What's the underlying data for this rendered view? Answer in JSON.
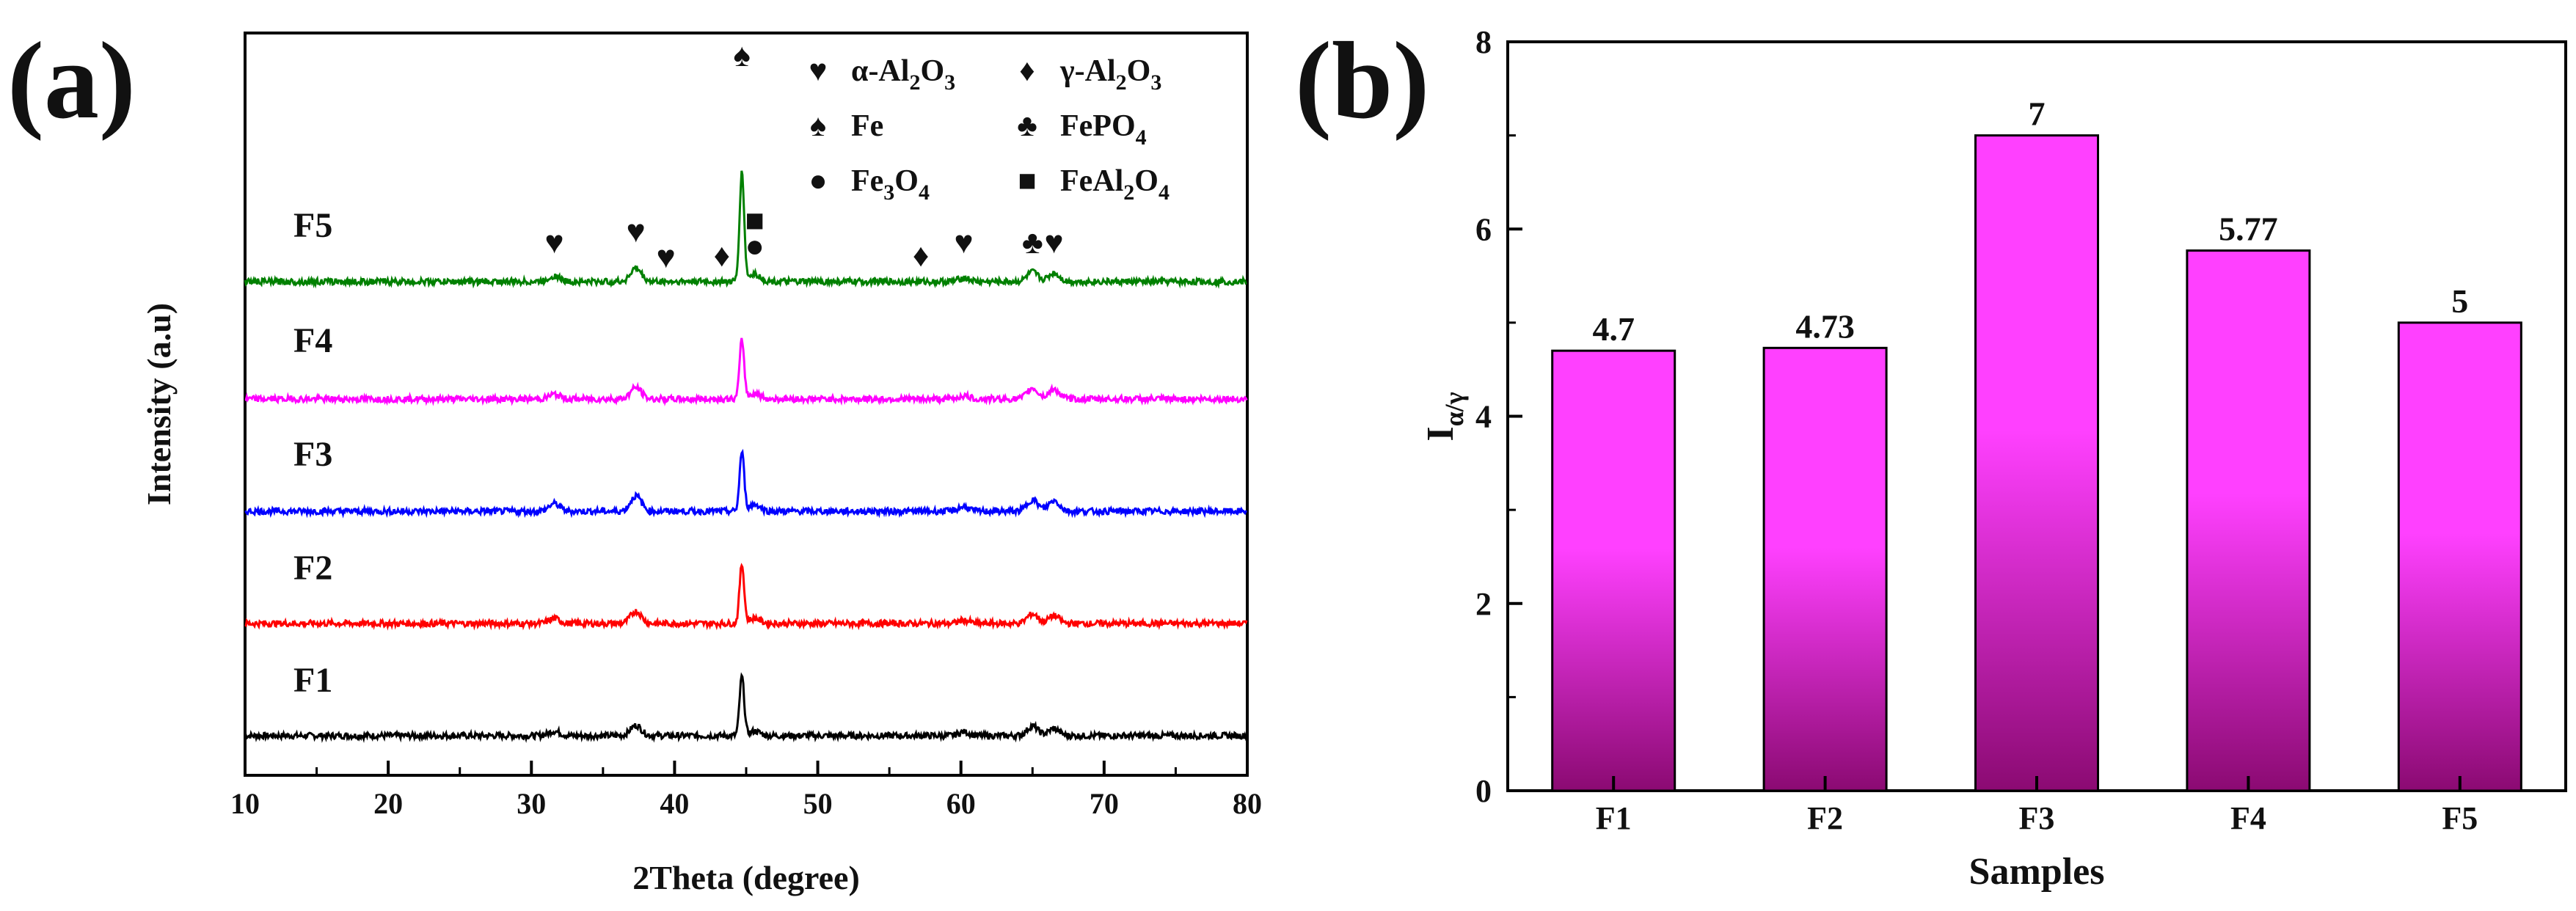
{
  "chart_data": [
    {
      "panel_label": "(a)",
      "type": "line",
      "xlabel": "2Theta (degree)",
      "ylabel": "Intensity (a.u)",
      "xlim": [
        10,
        80
      ],
      "xticks": [
        "10",
        "20",
        "30",
        "40",
        "50",
        "60",
        "70",
        "80"
      ],
      "series": [
        {
          "name": "F1",
          "color": "#000000",
          "peaks": [
            [
              31.6,
              0.12
            ],
            [
              37.3,
              0.27
            ],
            [
              44.7,
              1.55
            ],
            [
              45.6,
              0.12
            ],
            [
              60.2,
              0.1
            ],
            [
              65.0,
              0.25
            ],
            [
              66.5,
              0.18
            ]
          ]
        },
        {
          "name": "F2",
          "color": "#ff0000",
          "peaks": [
            [
              31.6,
              0.13
            ],
            [
              37.3,
              0.32
            ],
            [
              44.7,
              1.55
            ],
            [
              45.6,
              0.14
            ],
            [
              60.2,
              0.08
            ],
            [
              65.0,
              0.25
            ],
            [
              66.5,
              0.2
            ]
          ]
        },
        {
          "name": "F3",
          "color": "#0000ff",
          "peaks": [
            [
              31.6,
              0.2
            ],
            [
              37.3,
              0.4
            ],
            [
              44.7,
              1.55
            ],
            [
              45.6,
              0.18
            ],
            [
              60.2,
              0.12
            ],
            [
              65.0,
              0.3
            ],
            [
              66.5,
              0.28
            ]
          ]
        },
        {
          "name": "F4",
          "color": "#ff00ff",
          "peaks": [
            [
              31.6,
              0.12
            ],
            [
              37.3,
              0.3
            ],
            [
              44.7,
              1.55
            ],
            [
              45.6,
              0.15
            ],
            [
              60.2,
              0.08
            ],
            [
              65.0,
              0.28
            ],
            [
              66.5,
              0.25
            ]
          ]
        },
        {
          "name": "F5",
          "color": "#008000",
          "peaks": [
            [
              31.6,
              0.15
            ],
            [
              37.3,
              0.35
            ],
            [
              44.7,
              2.85
            ],
            [
              45.6,
              0.2
            ],
            [
              60.2,
              0.1
            ],
            [
              65.0,
              0.25
            ],
            [
              66.5,
              0.22
            ]
          ]
        }
      ],
      "peak_markers": [
        {
          "symbol": "♥",
          "x": 31.6
        },
        {
          "symbol": "♥",
          "x": 37.3
        },
        {
          "symbol": "♥",
          "x": 39.4
        },
        {
          "symbol": "♦",
          "x": 43.3
        },
        {
          "symbol": "♠",
          "x": 44.7
        },
        {
          "symbol": "●",
          "x": 45.6
        },
        {
          "symbol": "■",
          "x": 45.6
        },
        {
          "symbol": "♦",
          "x": 57.2
        },
        {
          "symbol": "♥",
          "x": 60.2
        },
        {
          "symbol": "♣",
          "x": 65.0
        },
        {
          "symbol": "♥",
          "x": 66.5
        }
      ],
      "legend": [
        {
          "symbol": "♥",
          "base": "α-Al",
          "sub1": "2",
          "mid": "O",
          "sub2": "3"
        },
        {
          "symbol": "♦",
          "base": "γ-Al",
          "sub1": "2",
          "mid": "O",
          "sub2": "3"
        },
        {
          "symbol": "♠",
          "base": "Fe",
          "sub1": "",
          "mid": "",
          "sub2": ""
        },
        {
          "symbol": "♣",
          "base": "FePO",
          "sub1": "4",
          "mid": "",
          "sub2": ""
        },
        {
          "symbol": "●",
          "base": "Fe",
          "sub1": "3",
          "mid": "O",
          "sub2": "4"
        },
        {
          "symbol": "■",
          "base": "FeAl",
          "sub1": "2",
          "mid": "O",
          "sub2": "4"
        }
      ]
    },
    {
      "panel_label": "(b)",
      "type": "bar",
      "categories": [
        "F1",
        "F2",
        "F3",
        "F4",
        "F5"
      ],
      "values": [
        4.7,
        4.73,
        7,
        5.77,
        5
      ],
      "value_labels": [
        "4.7",
        "4.73",
        "7",
        "5.77",
        "5"
      ],
      "xlabel": "Samples",
      "ylabel": "I",
      "ylabel_sub": "α/γ",
      "ylim": [
        0,
        8
      ],
      "yticks": [
        "0",
        "2",
        "4",
        "6",
        "8"
      ],
      "bar_color_top": "#ff40ff",
      "bar_color_bottom": "#8b0a72"
    }
  ]
}
